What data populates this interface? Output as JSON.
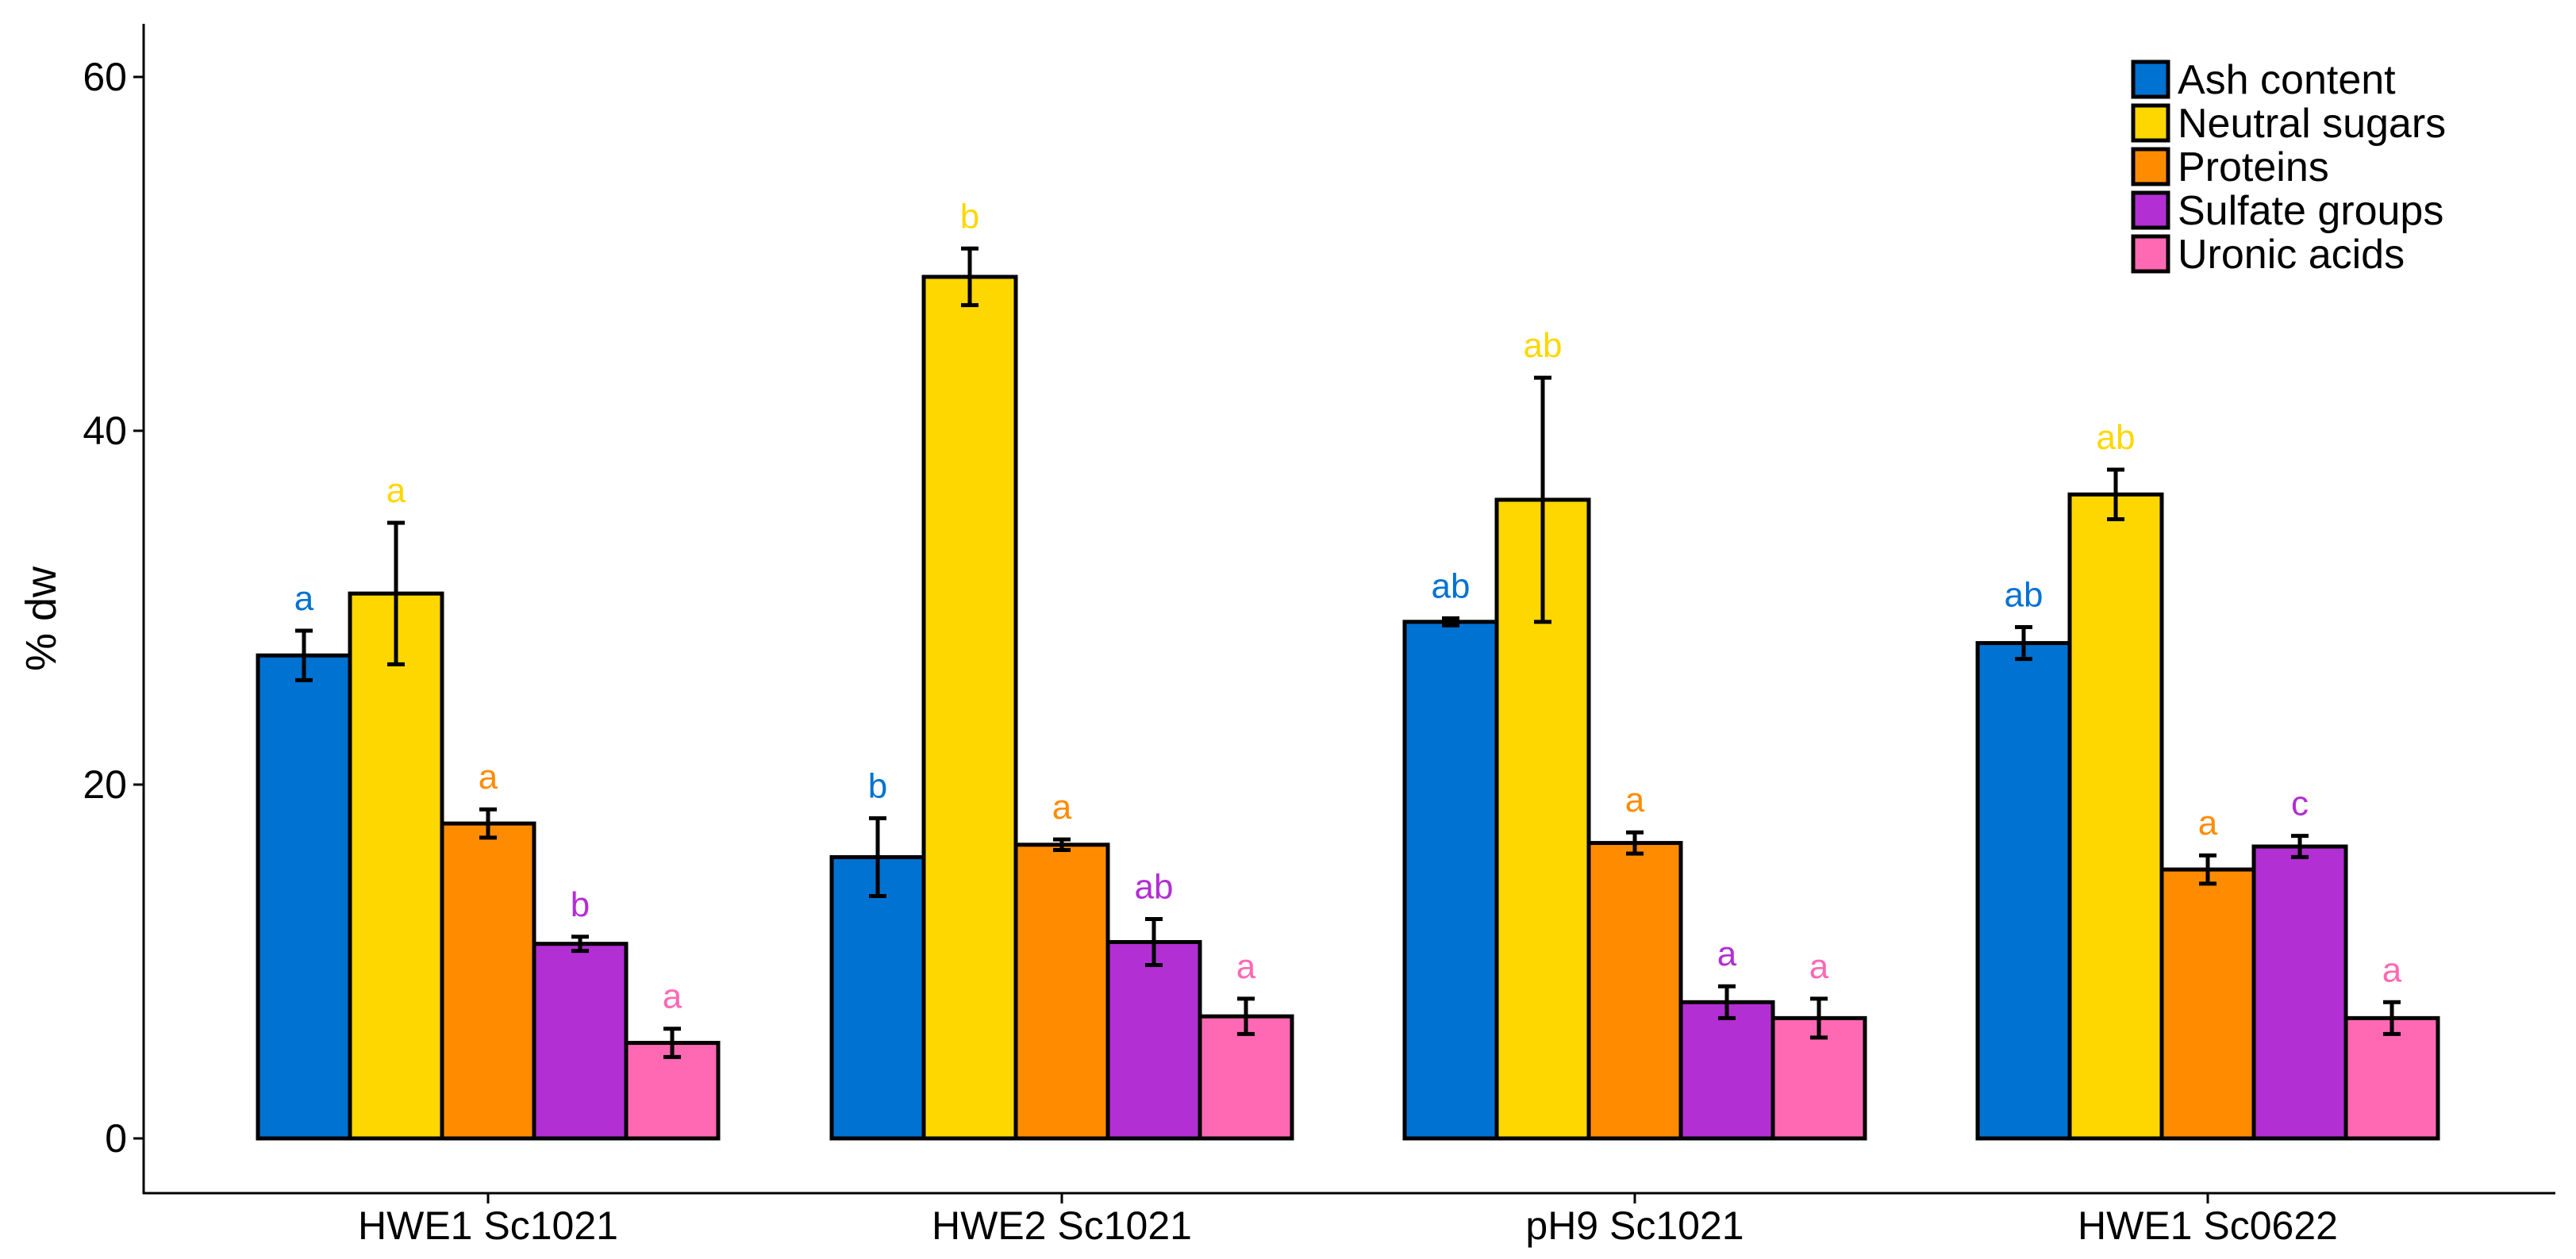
{
  "chart_data": {
    "type": "bar",
    "title": "",
    "xlabel": "",
    "ylabel": "% dw",
    "ylim": [
      0,
      60
    ],
    "yticks": [
      0,
      20,
      40,
      60
    ],
    "legend_position": "top-right",
    "categories": [
      "HWE1 Sc1021",
      "HWE2 Sc1021",
      "pH9 Sc1021",
      "HWE1 Sc0622"
    ],
    "series": [
      {
        "name": "Ash content",
        "color": "#0072D2",
        "values": [
          27.3,
          15.9,
          29.2,
          28.0
        ],
        "errors": [
          1.4,
          2.2,
          0.2,
          0.9
        ],
        "labels": [
          "a",
          "b",
          "ab",
          "ab"
        ]
      },
      {
        "name": "Neutral sugars",
        "color": "#FFD700",
        "values": [
          30.8,
          48.7,
          36.1,
          36.4
        ],
        "errors": [
          4.0,
          1.6,
          6.9,
          1.4
        ],
        "labels": [
          "a",
          "b",
          "ab",
          "ab"
        ]
      },
      {
        "name": "Proteins",
        "color": "#FF8C00",
        "values": [
          17.8,
          16.6,
          16.7,
          15.2
        ],
        "errors": [
          0.8,
          0.3,
          0.6,
          0.8
        ],
        "labels": [
          "a",
          "a",
          "a",
          "a"
        ]
      },
      {
        "name": "Sulfate groups",
        "color": "#B22FD3",
        "values": [
          11.0,
          11.1,
          7.7,
          16.5
        ],
        "errors": [
          0.4,
          1.3,
          0.9,
          0.6
        ],
        "labels": [
          "b",
          "ab",
          "a",
          "c"
        ]
      },
      {
        "name": "Uronic acids",
        "color": "#FF69B4",
        "values": [
          5.4,
          6.9,
          6.8,
          6.8
        ],
        "errors": [
          0.8,
          1.0,
          1.1,
          0.9
        ],
        "labels": [
          "a",
          "a",
          "a",
          "a"
        ]
      }
    ]
  }
}
